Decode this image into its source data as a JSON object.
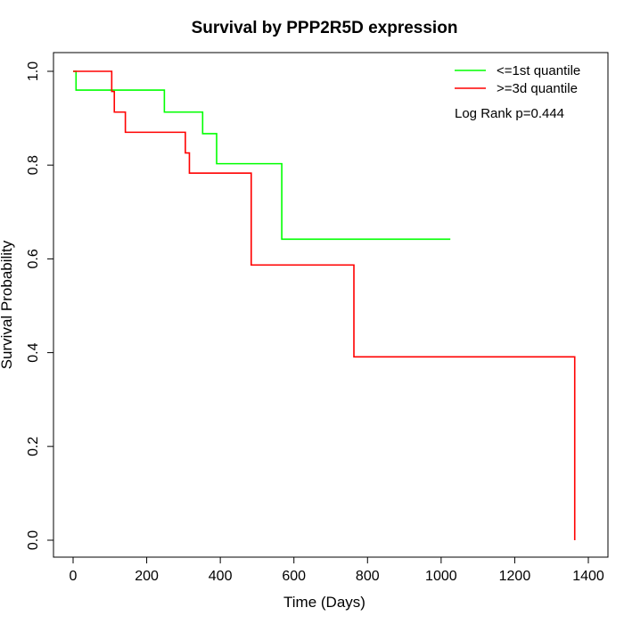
{
  "chart_data": {
    "type": "line",
    "title": "Survival by PPP2R5D expression",
    "xlabel": "Time (Days)",
    "ylabel": "Survival Probability",
    "xlim": [
      0,
      1400
    ],
    "ylim": [
      0,
      1.0
    ],
    "x_ticks": [
      0,
      200,
      400,
      600,
      800,
      1000,
      1200,
      1400
    ],
    "y_ticks": [
      0.0,
      0.2,
      0.4,
      0.6,
      0.8,
      1.0
    ],
    "x_tick_labels": [
      "0",
      "200",
      "400",
      "600",
      "800",
      "1000",
      "1200",
      "1400"
    ],
    "y_tick_labels": [
      "0.0",
      "0.2",
      "0.4",
      "0.6",
      "0.8",
      "1.0"
    ],
    "grid": false,
    "legend_position": "top-right",
    "annotation": "Log Rank p=0.444",
    "series": [
      {
        "name": "<=1st quantile",
        "color": "#00ff00",
        "step": true,
        "x": [
          0,
          8,
          248,
          352,
          390,
          567,
          1025
        ],
        "y": [
          1.0,
          0.96,
          0.913,
          0.867,
          0.803,
          0.642,
          0.642
        ]
      },
      {
        "name": ">=3d quantile",
        "color": "#ff0000",
        "step": true,
        "x": [
          0,
          105,
          112,
          142,
          305,
          316,
          484,
          763,
          1363
        ],
        "y": [
          1.0,
          0.957,
          0.913,
          0.87,
          0.826,
          0.783,
          0.587,
          0.391,
          0.0
        ]
      }
    ]
  }
}
